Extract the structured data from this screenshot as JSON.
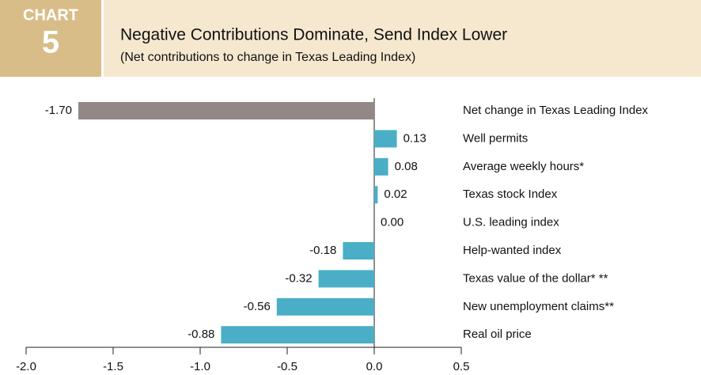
{
  "chart_data": {
    "type": "bar",
    "orientation": "horizontal",
    "badge_label": "CHART",
    "badge_number": "5",
    "title": "Negative Contributions Dominate, Send Index Lower",
    "subtitle": "(Net contributions to change in Texas Leading Index)",
    "categories": [
      "Net change in Texas Leading Index",
      "Well permits",
      "Average weekly hours*",
      "Texas stock Index",
      "U.S. leading index",
      "Help-wanted index",
      "Texas value of the dollar* **",
      "New unemployment claims**",
      "Real oil price"
    ],
    "values": [
      -1.7,
      0.13,
      0.08,
      0.02,
      0,
      -0.18,
      -0.32,
      -0.56,
      -0.88
    ],
    "value_labels": [
      "-1.70",
      "0.13",
      "0.08",
      "0.02",
      "0.00",
      "-0.18",
      "-0.32",
      "-0.56",
      "-0.88"
    ],
    "colors": [
      "#938886",
      "#4aafc6",
      "#4aafc6",
      "#4aafc6",
      "#4aafc6",
      "#4aafc6",
      "#4aafc6",
      "#4aafc6",
      "#4aafc6"
    ],
    "xlim": [
      -2,
      0.5
    ],
    "xticks": [
      {
        "value": -2,
        "label": "-2.0"
      },
      {
        "value": -1.5,
        "label": "-1.5"
      },
      {
        "value": -1,
        "label": "-1.0"
      },
      {
        "value": -0.5,
        "label": "-0.5"
      },
      {
        "value": 0,
        "label": "0.0"
      },
      {
        "value": 0.5,
        "label": "0.5"
      }
    ]
  }
}
